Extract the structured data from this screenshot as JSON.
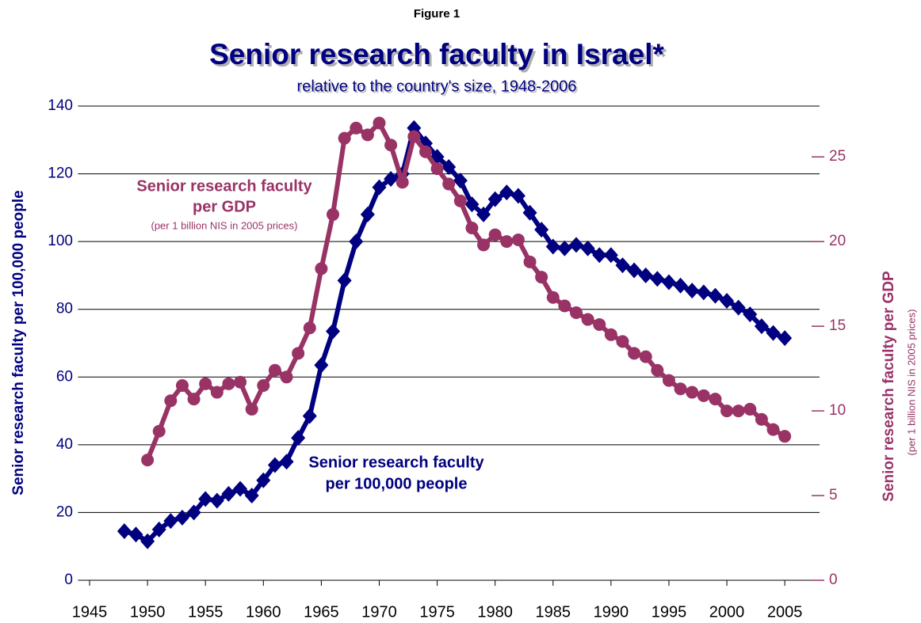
{
  "chart_data": {
    "type": "line",
    "figure_label": "Figure 1",
    "title": "Senior research faculty in Israel*",
    "subtitle": "relative to the country's size, 1948-2006",
    "y_label": "Senior research faculty per 100,000 people",
    "y2_label": "Senior research faculty per GDP",
    "y2_sublabel": "(per 1 billion NIS in 2005 prices)",
    "annotations": [
      {
        "lines": [
          "Senior research faculty",
          "per GDP"
        ],
        "note": "(per 1 billion NIS in 2005 prices)",
        "color": "#993366"
      },
      {
        "lines": [
          "Senior research faculty",
          "per 100,000 people"
        ],
        "color": "#000080"
      }
    ],
    "x": [
      1948,
      1949,
      1950,
      1951,
      1952,
      1953,
      1954,
      1955,
      1956,
      1957,
      1958,
      1959,
      1960,
      1961,
      1962,
      1963,
      1964,
      1965,
      1966,
      1967,
      1968,
      1969,
      1970,
      1971,
      1972,
      1973,
      1974,
      1975,
      1976,
      1977,
      1978,
      1979,
      1980,
      1981,
      1982,
      1983,
      1984,
      1985,
      1986,
      1987,
      1988,
      1989,
      1990,
      1991,
      1992,
      1993,
      1994,
      1995,
      1996,
      1997,
      1998,
      1999,
      2000,
      2001,
      2002,
      2003,
      2004,
      2005
    ],
    "series": [
      {
        "name": "Senior research faculty per 100,000 people",
        "color": "#000080",
        "marker": "diamond",
        "axis": "y",
        "values": [
          14.5,
          13.5,
          11.5,
          15,
          17.5,
          18.5,
          20,
          24,
          23.5,
          25.5,
          27,
          25,
          29.5,
          34,
          35,
          42,
          48.5,
          63.5,
          73.5,
          88.5,
          100,
          108,
          116,
          118.5,
          120,
          133.5,
          129,
          125,
          122,
          118,
          111,
          108,
          112.5,
          114.5,
          113.5,
          108.5,
          103.5,
          98.5,
          98,
          99,
          98,
          96,
          96,
          93,
          91.5,
          90,
          89,
          88,
          87,
          85.5,
          85,
          84,
          82.5,
          80.5,
          78.5,
          75,
          73,
          71.5
        ]
      },
      {
        "name": "Senior research faculty per GDP",
        "color": "#993366",
        "marker": "circle",
        "axis": "y2",
        "values": [
          null,
          null,
          7.1,
          8.8,
          10.6,
          11.5,
          10.7,
          11.6,
          11.1,
          11.6,
          11.7,
          10.1,
          11.5,
          12.4,
          12,
          13.4,
          14.9,
          18.4,
          21.6,
          26.1,
          26.7,
          26.3,
          27,
          25.7,
          23.5,
          26.2,
          25.3,
          24.3,
          23.4,
          22.4,
          20.8,
          19.8,
          20.4,
          20,
          20.1,
          18.8,
          17.9,
          16.7,
          16.2,
          15.8,
          15.4,
          15.1,
          14.5,
          14.1,
          13.4,
          13.2,
          12.4,
          11.8,
          11.3,
          11.1,
          10.9,
          10.7,
          10,
          10,
          10.1,
          9.5,
          8.9,
          8.5
        ]
      }
    ],
    "xlim": [
      1944,
      2008
    ],
    "xticks": [
      1945,
      1950,
      1955,
      1960,
      1965,
      1970,
      1975,
      1980,
      1985,
      1990,
      1995,
      2000,
      2005
    ],
    "ylim": [
      0,
      140
    ],
    "yticks": [
      0,
      20,
      40,
      60,
      80,
      100,
      120,
      140
    ],
    "y2lim": [
      0,
      28
    ],
    "y2ticks": [
      0,
      5,
      10,
      15,
      20,
      25
    ],
    "grid": true
  }
}
